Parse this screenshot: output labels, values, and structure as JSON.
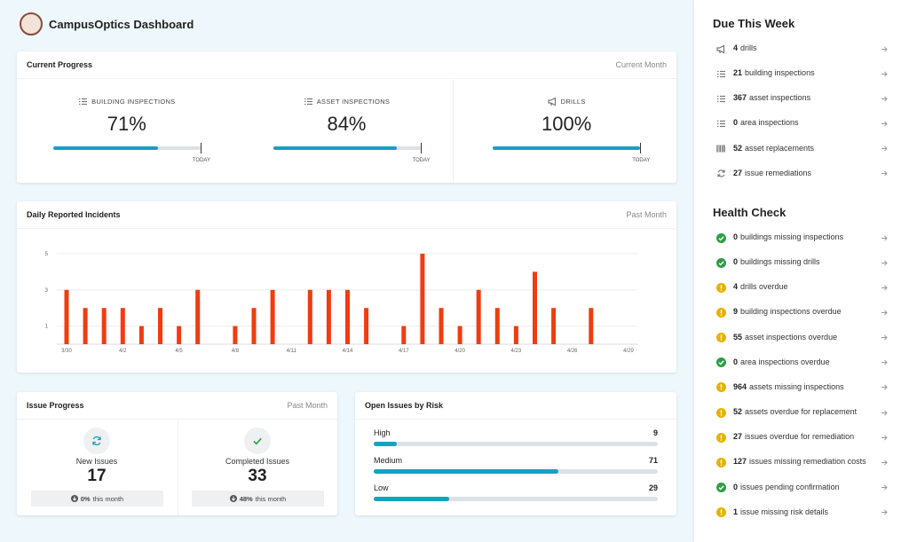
{
  "header": {
    "title": "CampusOptics Dashboard"
  },
  "progress": {
    "title": "Current Progress",
    "period": "Current Month",
    "marker": "TODAY",
    "color": "#13a2c0",
    "items": [
      {
        "label": "BUILDING INSPECTIONS",
        "value": 71,
        "value_label": "71%"
      },
      {
        "label": "ASSET INSPECTIONS",
        "value": 84,
        "value_label": "84%"
      },
      {
        "label": "DRILLS",
        "value": 100,
        "value_label": "100%"
      }
    ]
  },
  "chart_data": {
    "type": "bar",
    "title": "Daily Reported Incidents",
    "period": "Past Month",
    "categories": [
      "3/30",
      null,
      null,
      "4/2",
      null,
      null,
      "4/5",
      null,
      null,
      "4/8",
      null,
      null,
      "4/11",
      null,
      null,
      "4/14",
      null,
      null,
      "4/17",
      null,
      null,
      "4/20",
      null,
      null,
      "4/23",
      null,
      null,
      "4/26",
      null,
      null,
      "4/29"
    ],
    "values": [
      3,
      2,
      2,
      2,
      1,
      2,
      1,
      3,
      0,
      1,
      2,
      3,
      0,
      3,
      3,
      3,
      2,
      0,
      1,
      5,
      2,
      1,
      3,
      2,
      1,
      4,
      2,
      0,
      2,
      0,
      0
    ],
    "color": "#f03c0f",
    "ylim": [
      0,
      5
    ],
    "yticks": [
      1,
      3,
      5
    ],
    "grid": true
  },
  "issue_progress": {
    "title": "Issue Progress",
    "period": "Past Month",
    "items": [
      {
        "label": "New Issues",
        "value": 17,
        "change": {
          "value": 0,
          "label": "0%"
        },
        "change_note": "this month"
      },
      {
        "label": "Completed Issues",
        "value": 33,
        "change": {
          "value": 48,
          "label": "48%"
        },
        "change_note": "this month"
      }
    ]
  },
  "risk": {
    "title": "Open Issues by Risk",
    "color": "#13a2c0",
    "items": [
      {
        "label": "High",
        "value": 9
      },
      {
        "label": "Medium",
        "value": 71
      },
      {
        "label": "Low",
        "value": 29
      }
    ]
  },
  "due": {
    "title": "Due This Week",
    "items": [
      {
        "count": 4,
        "text": "drills"
      },
      {
        "count": 21,
        "text": "building inspections"
      },
      {
        "count": 367,
        "text": "asset inspections"
      },
      {
        "count": 0,
        "text": "area inspections"
      },
      {
        "count": 52,
        "text": "asset replacements"
      },
      {
        "count": 27,
        "text": "issue remediations"
      }
    ]
  },
  "health": {
    "title": "Health Check",
    "items": [
      {
        "count": 0,
        "text": "buildings missing inspections",
        "status": "ok"
      },
      {
        "count": 0,
        "text": "buildings missing drills",
        "status": "ok"
      },
      {
        "count": 4,
        "text": "drills overdue",
        "status": "warning"
      },
      {
        "count": 9,
        "text": "building inspections overdue",
        "status": "warning"
      },
      {
        "count": 55,
        "text": "asset inspections overdue",
        "status": "warning"
      },
      {
        "count": 0,
        "text": "area inspections overdue",
        "status": "ok"
      },
      {
        "count": 964,
        "text": "assets missing inspections",
        "status": "warning"
      },
      {
        "count": 52,
        "text": "assets overdue for replacement",
        "status": "warning"
      },
      {
        "count": 27,
        "text": "issues overdue for remediation",
        "status": "warning"
      },
      {
        "count": 127,
        "text": "issues missing remediation costs",
        "status": "warning"
      },
      {
        "count": 0,
        "text": "issues pending confirmation",
        "status": "ok"
      },
      {
        "count": 1,
        "text": "issue missing risk details",
        "status": "warning"
      }
    ]
  }
}
